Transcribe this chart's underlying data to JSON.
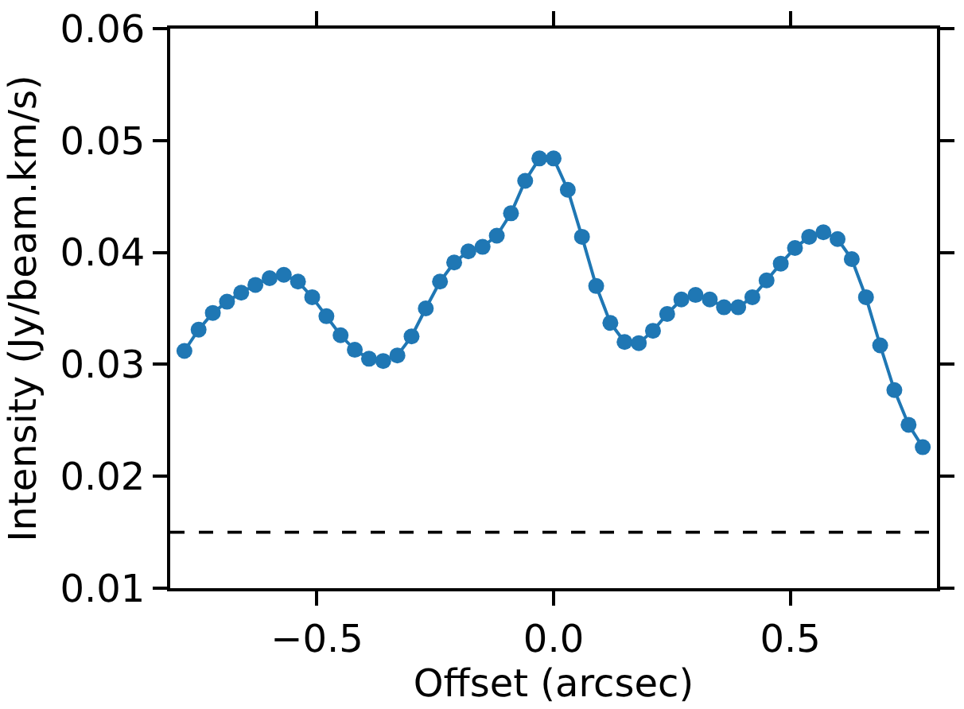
{
  "chart_data": {
    "type": "line",
    "xlabel": "Offset (arcsec)",
    "ylabel": "Intensity (Jy/beam.km/s)",
    "x": [
      -0.78,
      -0.75,
      -0.72,
      -0.69,
      -0.66,
      -0.63,
      -0.6,
      -0.57,
      -0.54,
      -0.51,
      -0.48,
      -0.45,
      -0.42,
      -0.39,
      -0.36,
      -0.33,
      -0.3,
      -0.27,
      -0.24,
      -0.21,
      -0.18,
      -0.15,
      -0.12,
      -0.09,
      -0.06,
      -0.03,
      0,
      0.03,
      0.06,
      0.09,
      0.12,
      0.15,
      0.18,
      0.21,
      0.24,
      0.27,
      0.3,
      0.33,
      0.36,
      0.39,
      0.42,
      0.45,
      0.48,
      0.51,
      0.54,
      0.57,
      0.6,
      0.63,
      0.66,
      0.69,
      0.72,
      0.75,
      0.78
    ],
    "series": [
      {
        "color": "#1f77b4",
        "values": [
          0.0312,
          0.0331,
          0.0346,
          0.0356,
          0.0364,
          0.0371,
          0.0377,
          0.038,
          0.0374,
          0.036,
          0.0343,
          0.0326,
          0.0313,
          0.0305,
          0.0303,
          0.0308,
          0.0325,
          0.035,
          0.0374,
          0.0391,
          0.0401,
          0.0405,
          0.0415,
          0.0435,
          0.0464,
          0.0484,
          0.0484,
          0.0456,
          0.0414,
          0.037,
          0.0337,
          0.032,
          0.0319,
          0.033,
          0.0345,
          0.0358,
          0.0362,
          0.0358,
          0.0351,
          0.0351,
          0.036,
          0.0375,
          0.039,
          0.0404,
          0.0414,
          0.0418,
          0.0412,
          0.0394,
          0.036,
          0.0317,
          0.0277,
          0.0246,
          0.0226
        ]
      }
    ],
    "xlim": [
      -0.81,
      0.81
    ],
    "xticks": [
      {
        "value": -0.5,
        "label": "−0.5"
      },
      {
        "value": 0,
        "label": "0.0"
      },
      0.5
    ],
    "ylim": [
      0.01,
      0.06
    ],
    "yticks": [
      0.01,
      0.02,
      0.03,
      0.04,
      0.05,
      0.06
    ],
    "ref_lines": [
      {
        "axis": "y",
        "value": 0.015,
        "color": "#000000",
        "line_style": "dashed"
      }
    ],
    "marker": "circle",
    "line_style": "solid"
  }
}
